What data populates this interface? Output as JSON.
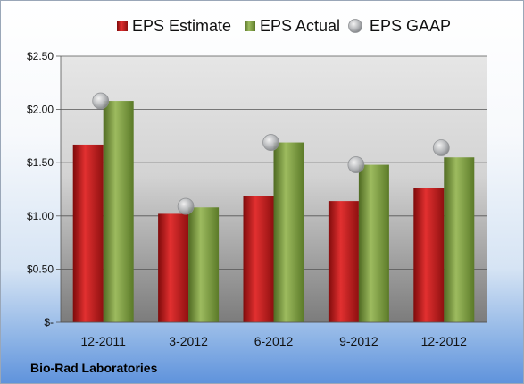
{
  "chart_data": {
    "type": "bar",
    "categories": [
      "12-2011",
      "3-2012",
      "6-2012",
      "9-2012",
      "12-2012"
    ],
    "series": [
      {
        "name": "EPS Estimate",
        "kind": "bar",
        "color": "#cc1f1f",
        "values": [
          1.67,
          1.02,
          1.19,
          1.14,
          1.26
        ]
      },
      {
        "name": "EPS Actual",
        "kind": "bar",
        "color": "#86a34a",
        "values": [
          2.08,
          1.08,
          1.69,
          1.48,
          1.55
        ]
      },
      {
        "name": "EPS GAAP",
        "kind": "marker",
        "color": "#a9abae",
        "values": [
          2.08,
          1.09,
          1.69,
          1.48,
          1.64
        ]
      }
    ],
    "ylim": [
      0,
      2.5
    ],
    "yticks": [
      0,
      0.5,
      1.0,
      1.5,
      2.0,
      2.5
    ],
    "ytick_labels": [
      "$-",
      "$0.50",
      "$1.00",
      "$1.50",
      "$2.00",
      "$2.50"
    ],
    "grid": true,
    "legend": "top"
  },
  "company_name": "Bio-Rad Laboratories"
}
